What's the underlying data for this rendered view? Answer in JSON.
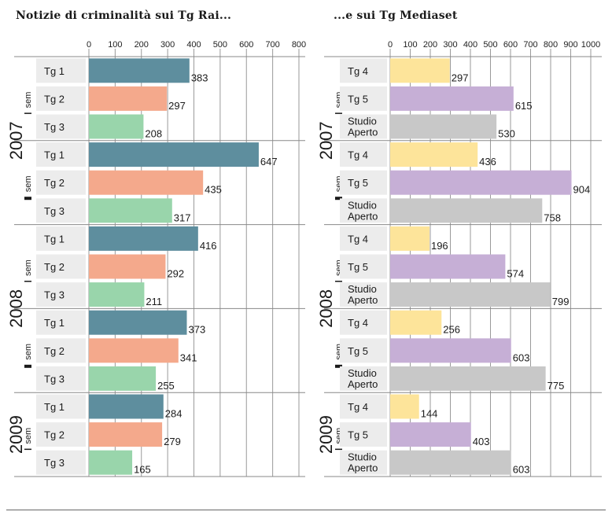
{
  "chart_data": [
    {
      "type": "bar",
      "title": "Notizie di criminalità sui Tg Rai...",
      "xlim": [
        0,
        800
      ],
      "ticks": [
        0,
        100,
        200,
        300,
        400,
        500,
        600,
        700,
        800
      ],
      "colors": {
        "Tg 1": "#5e8e9e",
        "Tg 2": "#f4a98c",
        "Tg 3": "#99d5ab"
      },
      "groups": [
        {
          "year": "2007",
          "semester": "I",
          "semester_label": "sem",
          "bars": [
            {
              "label": "Tg 1",
              "value": 383
            },
            {
              "label": "Tg 2",
              "value": 297
            },
            {
              "label": "Tg 3",
              "value": 208
            }
          ]
        },
        {
          "year": "2007",
          "semester": "II",
          "semester_label": "sem",
          "bars": [
            {
              "label": "Tg 1",
              "value": 647
            },
            {
              "label": "Tg 2",
              "value": 435
            },
            {
              "label": "Tg 3",
              "value": 317
            }
          ]
        },
        {
          "year": "2008",
          "semester": "I",
          "semester_label": "sem",
          "bars": [
            {
              "label": "Tg 1",
              "value": 416
            },
            {
              "label": "Tg 2",
              "value": 292
            },
            {
              "label": "Tg 3",
              "value": 211
            }
          ]
        },
        {
          "year": "2008",
          "semester": "II",
          "semester_label": "sem",
          "bars": [
            {
              "label": "Tg 1",
              "value": 373
            },
            {
              "label": "Tg 2",
              "value": 341
            },
            {
              "label": "Tg 3",
              "value": 255
            }
          ]
        },
        {
          "year": "2009",
          "semester": "I",
          "semester_label": "sem",
          "bars": [
            {
              "label": "Tg 1",
              "value": 284
            },
            {
              "label": "Tg 2",
              "value": 279
            },
            {
              "label": "Tg 3",
              "value": 165
            }
          ]
        }
      ]
    },
    {
      "type": "bar",
      "title": "...e sui Tg Mediaset",
      "xlim": [
        0,
        1000
      ],
      "ticks": [
        0,
        100,
        200,
        300,
        400,
        500,
        600,
        700,
        800,
        900,
        1000
      ],
      "colors": {
        "Tg 4": "#fde49a",
        "Tg 5": "#c6afd6",
        "Studio Aperto": "#c8c8c8"
      },
      "groups": [
        {
          "year": "2007",
          "semester": "I",
          "semester_label": "sem",
          "bars": [
            {
              "label": "Tg 4",
              "value": 297
            },
            {
              "label": "Tg 5",
              "value": 615
            },
            {
              "label": "Studio Aperto",
              "value": 530
            }
          ]
        },
        {
          "year": "2007",
          "semester": "II",
          "semester_label": "sem",
          "bars": [
            {
              "label": "Tg 4",
              "value": 436
            },
            {
              "label": "Tg 5",
              "value": 904
            },
            {
              "label": "Studio Aperto",
              "value": 758
            }
          ]
        },
        {
          "year": "2008",
          "semester": "I",
          "semester_label": "sem",
          "bars": [
            {
              "label": "Tg 4",
              "value": 196
            },
            {
              "label": "Tg 5",
              "value": 574
            },
            {
              "label": "Studio Aperto",
              "value": 799
            }
          ]
        },
        {
          "year": "2008",
          "semester": "II",
          "semester_label": "sem",
          "bars": [
            {
              "label": "Tg 4",
              "value": 256
            },
            {
              "label": "Tg 5",
              "value": 603
            },
            {
              "label": "Studio Aperto",
              "value": 775
            }
          ]
        },
        {
          "year": "2009",
          "semester": "I",
          "semester_label": "sem",
          "bars": [
            {
              "label": "Tg 4",
              "value": 144
            },
            {
              "label": "Tg 5",
              "value": 403
            },
            {
              "label": "Studio Aperto",
              "value": 603
            }
          ]
        }
      ]
    }
  ]
}
